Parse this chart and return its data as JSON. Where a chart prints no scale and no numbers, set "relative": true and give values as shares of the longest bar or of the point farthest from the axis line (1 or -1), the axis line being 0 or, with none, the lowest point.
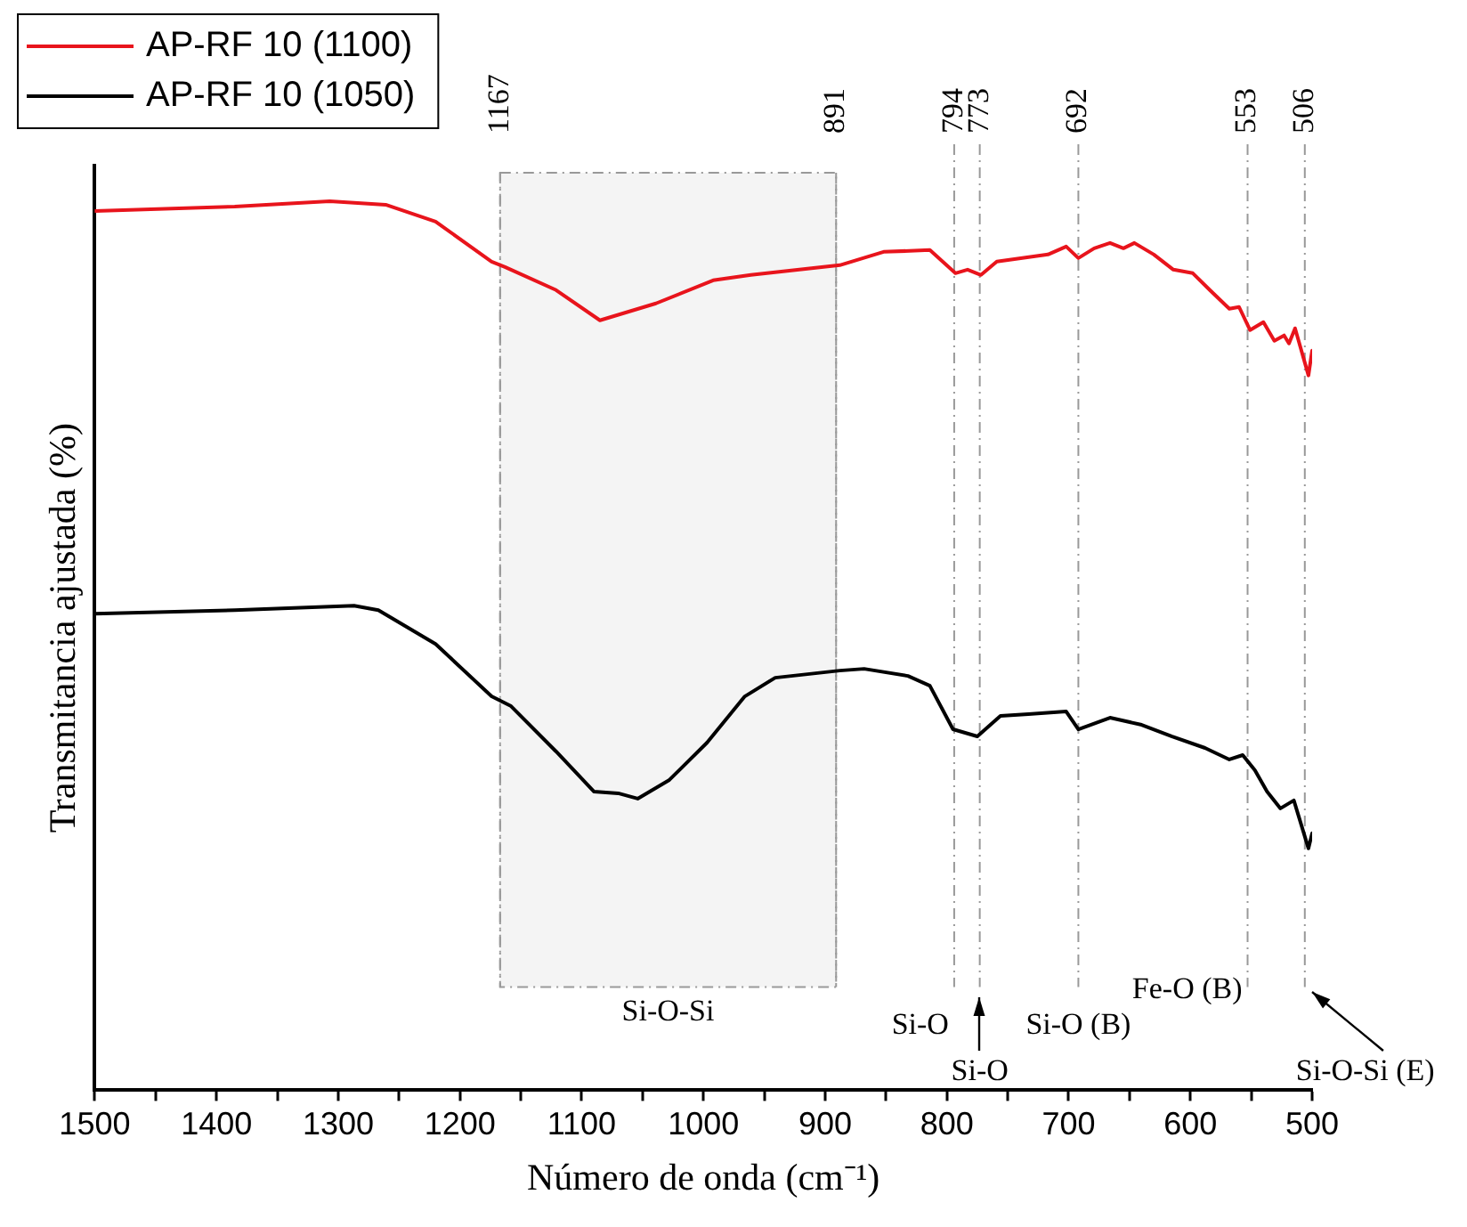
{
  "chart_data": {
    "type": "line",
    "xlabel": "Número de onda (cm⁻¹)",
    "ylabel": "Transmitancia ajustada (%)",
    "relative": true,
    "xlim": [
      1500,
      500
    ],
    "xticks": [
      1500,
      {
        "value": 1450,
        "label": null
      },
      1400,
      {
        "value": 1350,
        "label": null
      },
      1300,
      {
        "value": 1250,
        "label": null
      },
      1200,
      {
        "value": 1150,
        "label": null
      },
      1100,
      {
        "value": 1050,
        "label": null
      },
      1000,
      {
        "value": 950,
        "label": null
      },
      900,
      {
        "value": 850,
        "label": null
      },
      800,
      {
        "value": 750,
        "label": null
      },
      700,
      {
        "value": 650,
        "label": null
      },
      600,
      {
        "value": 550,
        "label": null
      },
      500
    ],
    "grid": false,
    "legend": "top left",
    "marker": "none",
    "line_style": "solid",
    "series": [
      {
        "name": "AP-RF 10 (1100)",
        "color": "#e8141c",
        "x": [
          1500,
          1385,
          1307,
          1261,
          1220,
          1174,
          1163,
          1121,
          1085,
          1039,
          992,
          961,
          888,
          852,
          814,
          793,
          783,
          772,
          759,
          717,
          702,
          692,
          679,
          666,
          655,
          646,
          630,
          614,
          598,
          584,
          568,
          560,
          551,
          540,
          531,
          523,
          519,
          514,
          503,
          500
        ],
        "values": [
          0.989,
          0.994,
          1,
          0.996,
          0.977,
          0.932,
          0.926,
          0.9,
          0.866,
          0.885,
          0.911,
          0.917,
          0.928,
          0.943,
          0.945,
          0.919,
          0.923,
          0.917,
          0.932,
          0.94,
          0.949,
          0.936,
          0.947,
          0.953,
          0.947,
          0.953,
          0.94,
          0.923,
          0.919,
          0.9,
          0.879,
          0.881,
          0.855,
          0.864,
          0.843,
          0.849,
          0.84,
          0.857,
          0.804,
          0.832
        ]
      },
      {
        "name": "AP-RF 10 (1050)",
        "color": "#000000",
        "x": [
          1500,
          1385,
          1287,
          1267,
          1220,
          1174,
          1158,
          1121,
          1090,
          1070,
          1054,
          1028,
          997,
          966,
          941,
          888,
          868,
          832,
          814,
          795,
          775,
          756,
          733,
          702,
          692,
          666,
          640,
          615,
          588,
          568,
          557,
          547,
          537,
          526,
          515,
          503,
          500
        ],
        "values": [
          0.536,
          0.54,
          0.545,
          0.54,
          0.502,
          0.443,
          0.432,
          0.381,
          0.336,
          0.334,
          0.328,
          0.349,
          0.391,
          0.443,
          0.464,
          0.472,
          0.474,
          0.466,
          0.455,
          0.406,
          0.398,
          0.421,
          0.423,
          0.426,
          0.406,
          0.419,
          0.411,
          0.398,
          0.385,
          0.372,
          0.377,
          0.36,
          0.336,
          0.317,
          0.326,
          0.272,
          0.289
        ]
      }
    ],
    "ref_lines": [
      {
        "axis": "x",
        "value": 1167,
        "label": "1167",
        "line_style": "dashed",
        "color": "#999999"
      },
      {
        "axis": "x",
        "value": 891,
        "label": "891",
        "line_style": "dashed",
        "color": "#999999"
      },
      {
        "axis": "x",
        "value": 794,
        "label": "794",
        "line_style": "dashed",
        "color": "#999999"
      },
      {
        "axis": "x",
        "value": 773,
        "label": "773",
        "line_style": "dashed",
        "color": "#999999"
      },
      {
        "axis": "x",
        "value": 692,
        "label": "692",
        "line_style": "dashed",
        "color": "#999999"
      },
      {
        "axis": "x",
        "value": 553,
        "label": "553",
        "line_style": "dashed",
        "color": "#999999"
      },
      {
        "axis": "x",
        "value": 506,
        "label": "506",
        "line_style": "dashed",
        "color": "#999999"
      }
    ],
    "bands": [
      {
        "axis": "x",
        "from": 1167,
        "to": 891,
        "label": "Si-O-Si",
        "color": "#f4f4f4"
      }
    ],
    "annotations": [
      "Si-O",
      "Si-O",
      "Si-O (B)",
      "Fe-O (B)",
      "Si-O-Si (E)"
    ]
  }
}
